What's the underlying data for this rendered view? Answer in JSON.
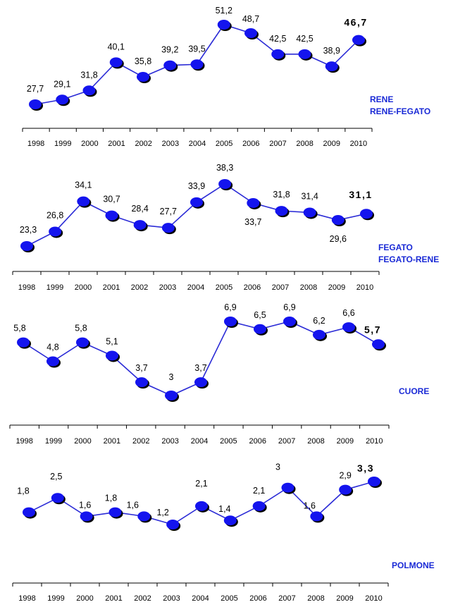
{
  "chart_data": [
    {
      "type": "line",
      "categories": [
        "1998",
        "1999",
        "2000",
        "2001",
        "2002",
        "2003",
        "2004",
        "2005",
        "2006",
        "2007",
        "2008",
        "2009",
        "2010"
      ],
      "values": [
        27.7,
        29.1,
        31.8,
        40.1,
        35.8,
        39.2,
        39.5,
        51.2,
        48.7,
        42.5,
        42.5,
        38.9,
        46.7
      ],
      "value_labels": [
        "27,7",
        "29,1",
        "31,8",
        "40,1",
        "35,8",
        "39,2",
        "39,5",
        "51,2",
        "48,7",
        "42,5",
        "42,5",
        "38,9",
        "46,7"
      ],
      "legend": [
        "RENE",
        "RENE-FEGATO"
      ],
      "legend_placement": "right",
      "grid": false,
      "ylim": [
        27,
        52
      ]
    },
    {
      "type": "line",
      "categories": [
        "1998",
        "1999",
        "2000",
        "2001",
        "2002",
        "2003",
        "2004",
        "2005",
        "2006",
        "2007",
        "2008",
        "2009",
        "2010"
      ],
      "values": [
        23.3,
        26.8,
        34.1,
        30.7,
        28.4,
        27.7,
        33.9,
        38.3,
        33.7,
        31.8,
        31.4,
        29.6,
        31.1
      ],
      "value_labels": [
        "23,3",
        "26,8",
        "34,1",
        "30,7",
        "28,4",
        "27,7",
        "33,9",
        "38,3",
        "33,7",
        "31,8",
        "31,4",
        "29,6",
        "31,1"
      ],
      "legend": [
        "FEGATO",
        "FEGATO-RENE"
      ],
      "legend_placement": "right",
      "grid": false,
      "ylim": [
        23,
        39
      ]
    },
    {
      "type": "line",
      "categories": [
        "1998",
        "1999",
        "2000",
        "2001",
        "2002",
        "2003",
        "2004",
        "2005",
        "2006",
        "2007",
        "2008",
        "2009",
        "2010"
      ],
      "values": [
        5.8,
        4.8,
        5.8,
        5.1,
        3.7,
        3.0,
        3.7,
        6.9,
        6.5,
        6.9,
        6.2,
        6.6,
        5.7
      ],
      "value_labels": [
        "5,8",
        "4,8",
        "5,8",
        "5,1",
        "3,7",
        "3",
        "3,7",
        "6,9",
        "6,5",
        "6,9",
        "6,2",
        "6,6",
        "5,7"
      ],
      "legend": [
        "CUORE"
      ],
      "legend_placement": "right",
      "grid": false,
      "ylim": [
        2,
        12
      ]
    },
    {
      "type": "line",
      "categories": [
        "1998",
        "1999",
        "2000",
        "2001",
        "2002",
        "2003",
        "2004",
        "2005",
        "2006",
        "2007",
        "2008",
        "2009",
        "2010"
      ],
      "values": [
        1.8,
        2.5,
        1.6,
        1.8,
        1.6,
        1.2,
        2.1,
        1.4,
        2.1,
        3.0,
        1.6,
        2.9,
        3.3
      ],
      "value_labels": [
        "1,8",
        "2,5",
        "1,6",
        "1,8",
        "1,6",
        "1,2",
        "2,1",
        "1,4",
        "2,1",
        "3",
        "1,6",
        "2,9",
        "3,3"
      ],
      "legend": [
        "POLMONE"
      ],
      "legend_placement": "right",
      "grid": false,
      "ylim": [
        1.0,
        3.4
      ]
    }
  ],
  "colors": {
    "line": "#2b2bd6",
    "marker": "#1414ee",
    "marker_shadow": "#000000",
    "legend_text": "#1a2ad6",
    "axis": "#000000"
  }
}
